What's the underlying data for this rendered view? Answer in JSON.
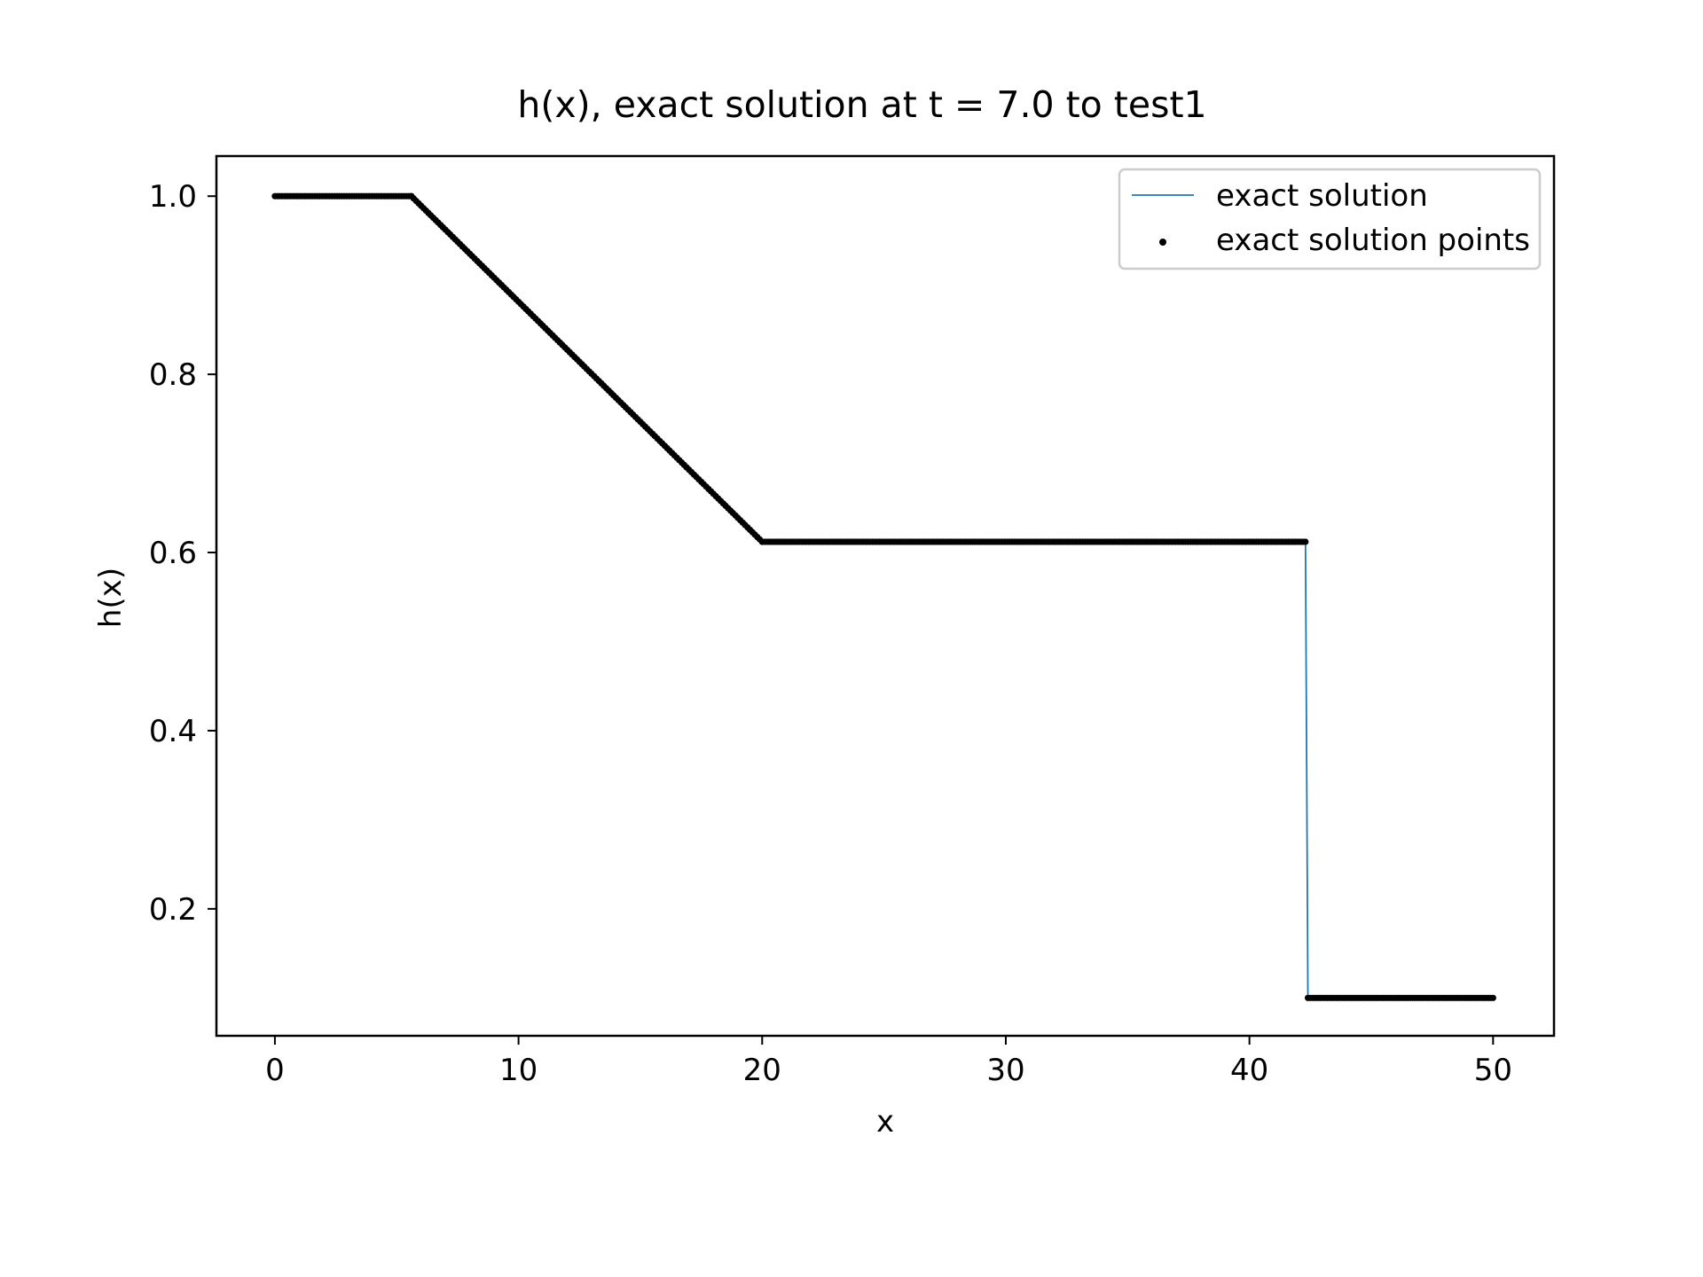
{
  "chart_data": {
    "type": "line",
    "title": "h(x), exact solution at t = 7.0 to test1",
    "xlabel": "x",
    "ylabel": "h(x)",
    "xlim": [
      -2.4,
      52.5
    ],
    "ylim": [
      0.0575,
      1.045
    ],
    "x_ticks": [
      0,
      10,
      20,
      30,
      40,
      50
    ],
    "x_tick_labels": [
      "0",
      "10",
      "20",
      "30",
      "40",
      "50"
    ],
    "y_ticks": [
      0.2,
      0.4,
      0.6,
      0.8,
      1.0
    ],
    "y_tick_labels": [
      "0.2",
      "0.4",
      "0.6",
      "0.8",
      "1.0"
    ],
    "grid": false,
    "legend_position": "top-right",
    "series": [
      {
        "name": "exact solution",
        "kind": "line",
        "color": "#1f77b4",
        "x": [
          0,
          5.6,
          20.0,
          42.3,
          42.4,
          50
        ],
        "y": [
          1.0,
          1.0,
          0.612,
          0.612,
          0.1,
          0.1
        ]
      },
      {
        "name": "exact solution points",
        "kind": "scatter",
        "color": "#000000",
        "segments": [
          {
            "x0": 0,
            "y0": 1.0,
            "x1": 5.6,
            "y1": 1.0,
            "n": 56
          },
          {
            "x0": 5.6,
            "y0": 1.0,
            "x1": 20.0,
            "y1": 0.612,
            "n": 145
          },
          {
            "x0": 20.0,
            "y0": 0.612,
            "x1": 42.3,
            "y1": 0.612,
            "n": 223
          },
          {
            "x0": 42.4,
            "y0": 0.1,
            "x1": 50,
            "y1": 0.1,
            "n": 77
          }
        ]
      }
    ]
  }
}
